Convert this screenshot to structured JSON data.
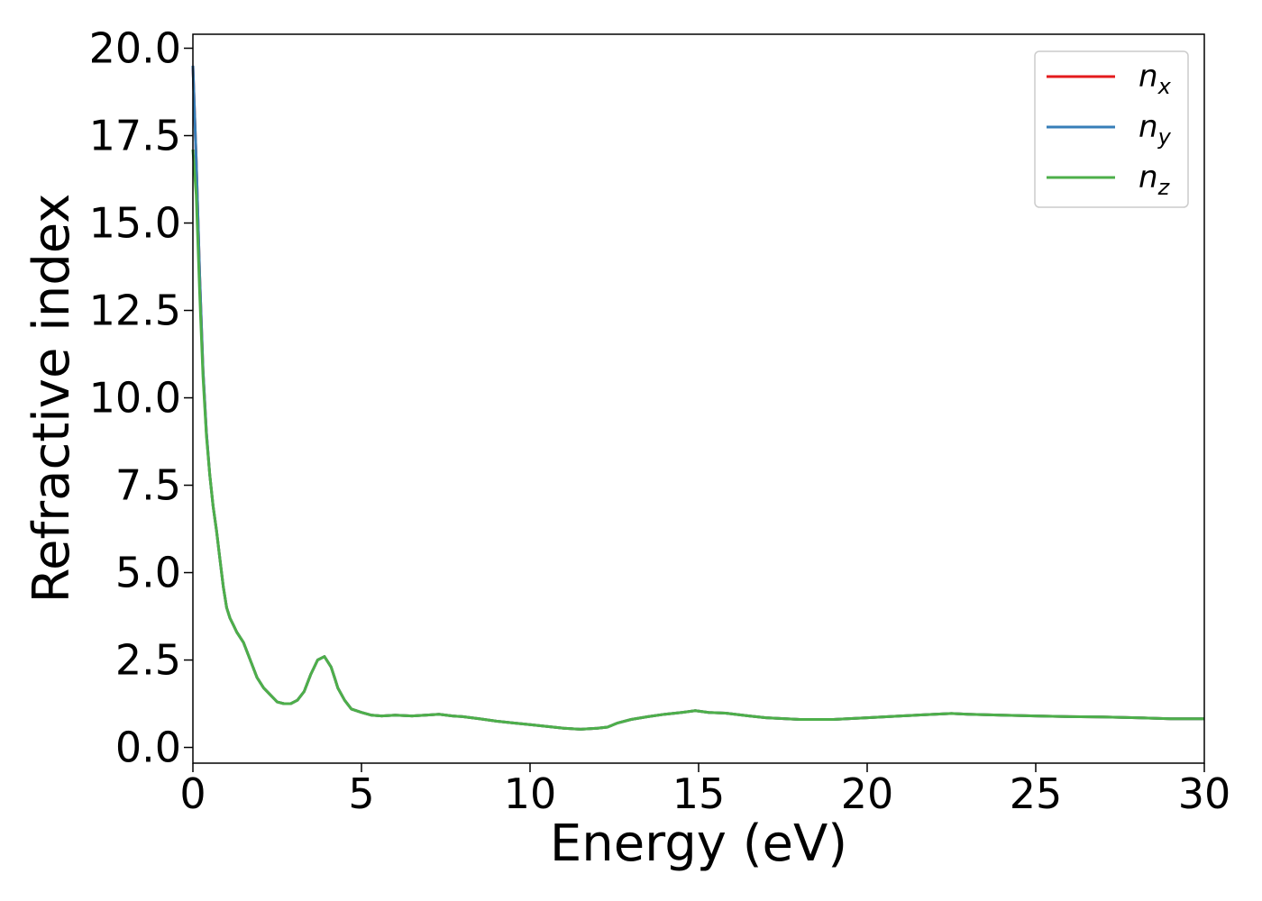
{
  "chart_data": {
    "type": "line",
    "title": "",
    "xlabel": "Energy (eV)",
    "ylabel": "Refractive index",
    "xlim": [
      0,
      30
    ],
    "ylim": [
      -0.45,
      20.4
    ],
    "xticks": [
      "0",
      "5",
      "10",
      "15",
      "20",
      "25",
      "30"
    ],
    "yticks": [
      "0.0",
      "2.5",
      "5.0",
      "7.5",
      "10.0",
      "12.5",
      "15.0",
      "17.5",
      "20.0"
    ],
    "grid": false,
    "legend_position": "top-right",
    "series": [
      {
        "name": "n_x",
        "label_main": "n",
        "label_sub": "x",
        "color": "#e41a1c",
        "x": [
          0,
          0.1,
          0.2,
          0.3,
          0.4,
          0.5,
          0.6,
          0.7,
          0.8,
          0.9,
          1.0,
          1.1,
          1.2,
          1.3,
          1.5,
          1.7,
          1.9,
          2.1,
          2.3,
          2.5,
          2.7,
          2.9,
          3.1,
          3.3,
          3.5,
          3.7,
          3.9,
          4.1,
          4.2,
          4.3,
          4.5,
          4.7,
          5.0,
          5.3,
          5.6,
          6.0,
          6.5,
          7.0,
          7.3,
          7.7,
          8.0,
          8.5,
          9.0,
          9.5,
          10.0,
          10.5,
          11.0,
          11.5,
          12.0,
          12.3,
          12.6,
          13.0,
          13.5,
          14.0,
          14.5,
          14.9,
          15.3,
          15.8,
          16.5,
          17.0,
          18.0,
          19.0,
          20.0,
          21.0,
          22.0,
          22.5,
          23.0,
          24.0,
          25.0,
          26.0,
          27.0,
          28.0,
          29.0,
          30.0
        ],
        "y": [
          19.5,
          16.8,
          13.5,
          10.8,
          9.0,
          7.8,
          6.9,
          6.2,
          5.4,
          4.6,
          4.0,
          3.7,
          3.5,
          3.3,
          3.0,
          2.5,
          2.0,
          1.7,
          1.5,
          1.3,
          1.25,
          1.25,
          1.35,
          1.6,
          2.1,
          2.5,
          2.6,
          2.3,
          2.0,
          1.7,
          1.35,
          1.1,
          1.0,
          0.92,
          0.9,
          0.92,
          0.9,
          0.93,
          0.95,
          0.9,
          0.88,
          0.82,
          0.75,
          0.7,
          0.65,
          0.6,
          0.55,
          0.52,
          0.55,
          0.58,
          0.7,
          0.8,
          0.88,
          0.95,
          1.0,
          1.05,
          1.0,
          0.98,
          0.9,
          0.85,
          0.8,
          0.8,
          0.85,
          0.9,
          0.95,
          0.97,
          0.95,
          0.92,
          0.9,
          0.88,
          0.87,
          0.85,
          0.82,
          0.82
        ]
      },
      {
        "name": "n_y",
        "label_main": "n",
        "label_sub": "y",
        "color": "#377eb8",
        "x": [
          0,
          0.1,
          0.2,
          0.3,
          0.4,
          0.5,
          0.6,
          0.7,
          0.8,
          0.9,
          1.0,
          1.1,
          1.2,
          1.3,
          1.5,
          1.7,
          1.9,
          2.1,
          2.3,
          2.5,
          2.7,
          2.9,
          3.1,
          3.3,
          3.5,
          3.7,
          3.9,
          4.1,
          4.2,
          4.3,
          4.5,
          4.7,
          5.0,
          5.3,
          5.6,
          6.0,
          6.5,
          7.0,
          7.3,
          7.7,
          8.0,
          8.5,
          9.0,
          9.5,
          10.0,
          10.5,
          11.0,
          11.5,
          12.0,
          12.3,
          12.6,
          13.0,
          13.5,
          14.0,
          14.5,
          14.9,
          15.3,
          15.8,
          16.5,
          17.0,
          18.0,
          19.0,
          20.0,
          21.0,
          22.0,
          22.5,
          23.0,
          24.0,
          25.0,
          26.0,
          27.0,
          28.0,
          29.0,
          30.0
        ],
        "y": [
          19.5,
          16.8,
          13.5,
          10.8,
          9.0,
          7.8,
          6.9,
          6.2,
          5.4,
          4.6,
          4.0,
          3.7,
          3.5,
          3.3,
          3.0,
          2.5,
          2.0,
          1.7,
          1.5,
          1.3,
          1.25,
          1.25,
          1.35,
          1.6,
          2.1,
          2.5,
          2.6,
          2.3,
          2.0,
          1.7,
          1.35,
          1.1,
          1.0,
          0.92,
          0.9,
          0.92,
          0.9,
          0.93,
          0.95,
          0.9,
          0.88,
          0.82,
          0.75,
          0.7,
          0.65,
          0.6,
          0.55,
          0.52,
          0.55,
          0.58,
          0.7,
          0.8,
          0.88,
          0.95,
          1.0,
          1.05,
          1.0,
          0.98,
          0.9,
          0.85,
          0.8,
          0.8,
          0.85,
          0.9,
          0.95,
          0.97,
          0.95,
          0.92,
          0.9,
          0.88,
          0.87,
          0.85,
          0.82,
          0.82
        ]
      },
      {
        "name": "n_z",
        "label_main": "n",
        "label_sub": "z",
        "color": "#4daf4a",
        "x": [
          0,
          0.1,
          0.2,
          0.3,
          0.4,
          0.5,
          0.6,
          0.7,
          0.8,
          0.9,
          1.0,
          1.1,
          1.2,
          1.3,
          1.5,
          1.7,
          1.9,
          2.1,
          2.3,
          2.5,
          2.7,
          2.9,
          3.1,
          3.3,
          3.5,
          3.7,
          3.9,
          4.1,
          4.2,
          4.3,
          4.5,
          4.7,
          5.0,
          5.3,
          5.6,
          6.0,
          6.5,
          7.0,
          7.3,
          7.7,
          8.0,
          8.5,
          9.0,
          9.5,
          10.0,
          10.5,
          11.0,
          11.5,
          12.0,
          12.3,
          12.6,
          13.0,
          13.5,
          14.0,
          14.5,
          14.9,
          15.3,
          15.8,
          16.5,
          17.0,
          18.0,
          19.0,
          20.0,
          21.0,
          22.0,
          22.5,
          23.0,
          24.0,
          25.0,
          26.0,
          27.0,
          28.0,
          29.0,
          30.0
        ],
        "y": [
          17.1,
          15.8,
          13.0,
          10.6,
          8.9,
          7.8,
          6.9,
          6.2,
          5.4,
          4.6,
          4.0,
          3.7,
          3.5,
          3.3,
          3.0,
          2.5,
          2.0,
          1.7,
          1.5,
          1.3,
          1.25,
          1.25,
          1.35,
          1.6,
          2.1,
          2.5,
          2.6,
          2.3,
          2.0,
          1.7,
          1.35,
          1.1,
          1.0,
          0.92,
          0.9,
          0.92,
          0.9,
          0.93,
          0.95,
          0.9,
          0.88,
          0.82,
          0.75,
          0.7,
          0.65,
          0.6,
          0.55,
          0.52,
          0.55,
          0.58,
          0.7,
          0.8,
          0.88,
          0.95,
          1.0,
          1.05,
          1.0,
          0.98,
          0.9,
          0.85,
          0.8,
          0.8,
          0.85,
          0.9,
          0.95,
          0.97,
          0.95,
          0.92,
          0.9,
          0.88,
          0.87,
          0.85,
          0.82,
          0.82
        ]
      }
    ]
  }
}
